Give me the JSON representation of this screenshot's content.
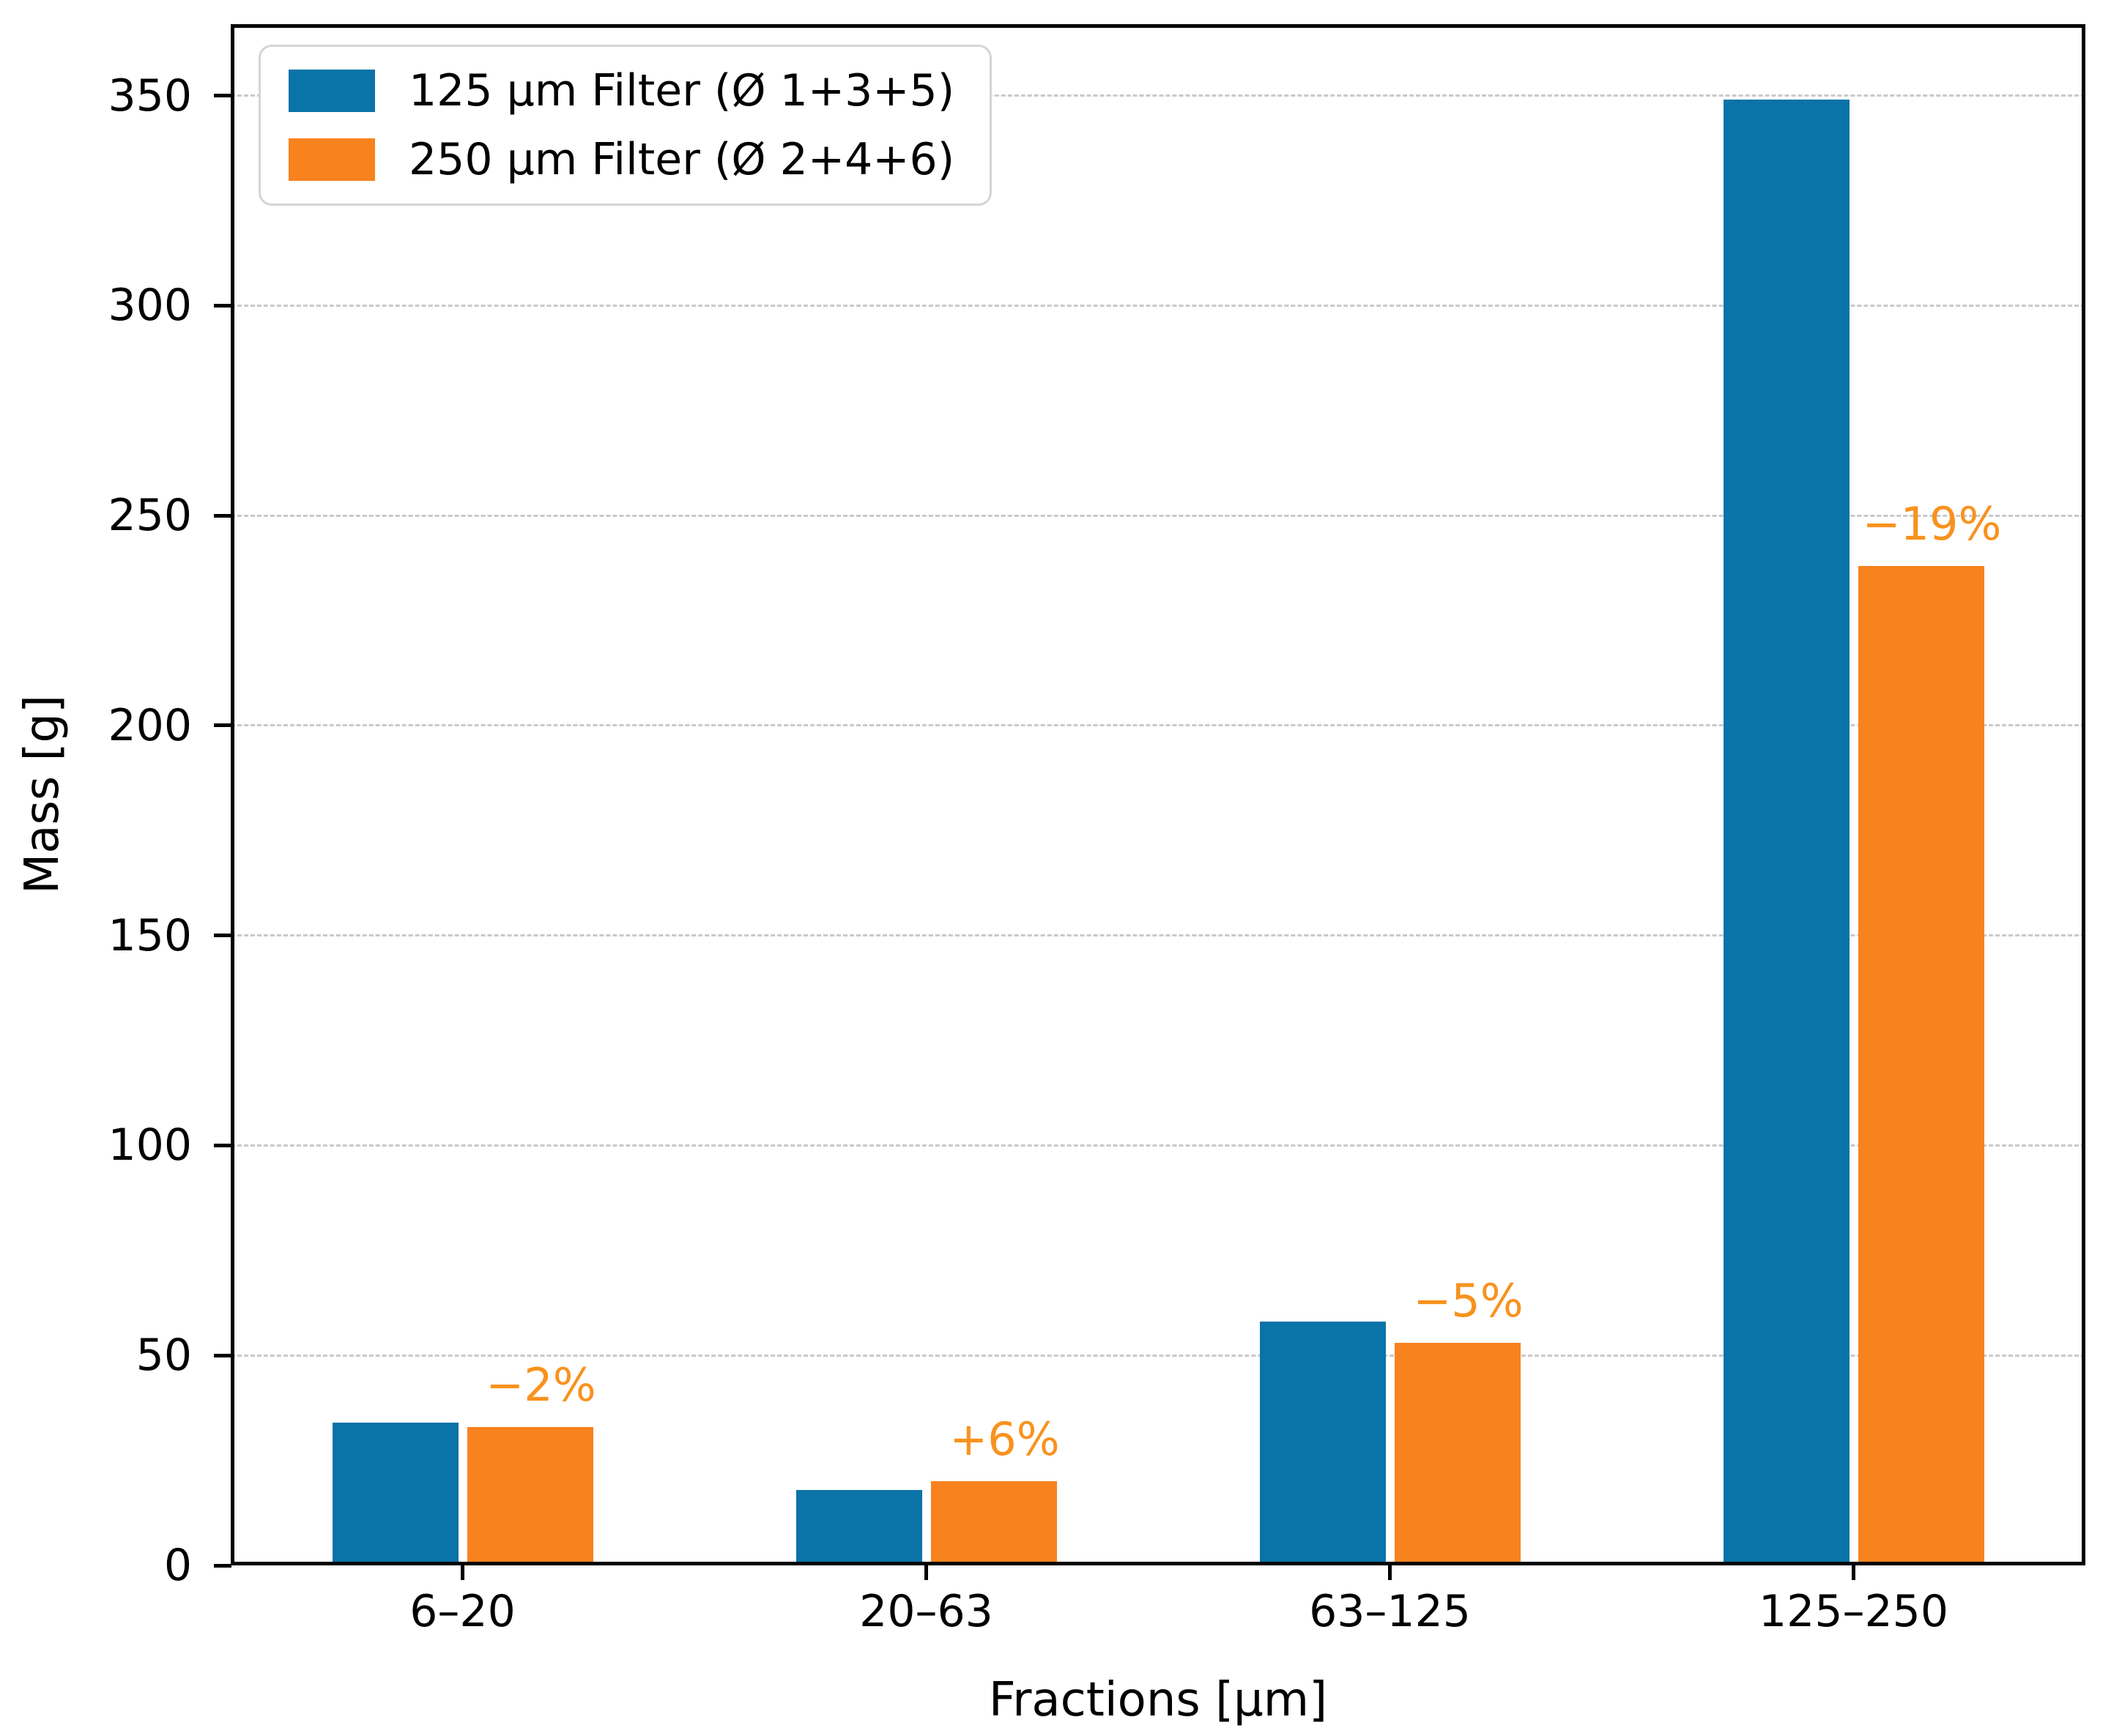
{
  "figure": {
    "background": "#ffffff",
    "grid_color": "#c9c9c9",
    "spine_color": "#000000"
  },
  "chart_data": {
    "type": "bar",
    "title": "",
    "xlabel": "Fractions [µm]",
    "ylabel": "Mass [g]",
    "categories": [
      "6–20",
      "20–63",
      "63–125",
      "125–250"
    ],
    "series": [
      {
        "name": "125 µm Filter (Ø 1+3+5)",
        "color": "#0a73a8",
        "values": [
          34,
          18,
          58,
          349
        ]
      },
      {
        "name": "250 µm Filter (Ø 2+4+6)",
        "color": "#f8821e",
        "values": [
          33,
          20,
          53,
          238
        ]
      }
    ],
    "annotations": [
      {
        "category": "6–20",
        "text": "−2%"
      },
      {
        "category": "20–63",
        "text": "+6%"
      },
      {
        "category": "63–125",
        "text": "−5%"
      },
      {
        "category": "125–250",
        "text": "−19%"
      }
    ],
    "annotation_color": "#f8921e",
    "ylim": [
      0,
      367
    ],
    "yticks": [
      0,
      50,
      100,
      150,
      200,
      250,
      300,
      350
    ],
    "grid": "horizontal-dashed",
    "legend_position": "upper-left"
  }
}
